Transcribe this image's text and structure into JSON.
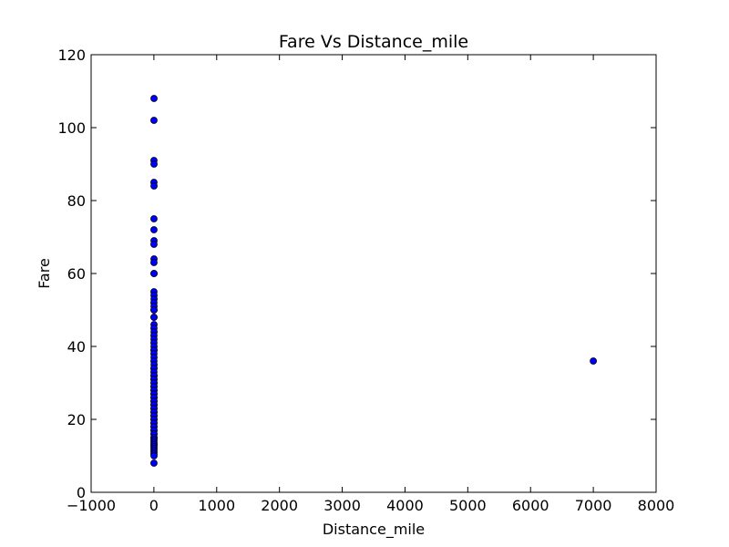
{
  "chart_data": {
    "type": "scatter",
    "title": "Fare Vs Distance_mile",
    "xlabel": "Distance_mile",
    "ylabel": "Fare",
    "xlim": [
      -1000,
      8000
    ],
    "ylim": [
      0,
      120
    ],
    "xticks": [
      -1000,
      0,
      1000,
      2000,
      3000,
      4000,
      5000,
      6000,
      7000,
      8000
    ],
    "yticks": [
      0,
      20,
      40,
      60,
      80,
      100,
      120
    ],
    "grid": false,
    "legend": "none",
    "colors": {
      "marker_fill": "#0000ff",
      "marker_edge": "#000000",
      "axes": "#000000"
    },
    "series": [
      {
        "points": [
          [
            2,
            108
          ],
          [
            1,
            102
          ],
          [
            1,
            91
          ],
          [
            2,
            90
          ],
          [
            1,
            85
          ],
          [
            2,
            84
          ],
          [
            1,
            75
          ],
          [
            1,
            72
          ],
          [
            2,
            69
          ],
          [
            1,
            68
          ],
          [
            2,
            64
          ],
          [
            1,
            63
          ],
          [
            1,
            60
          ],
          [
            3,
            60
          ],
          [
            1,
            55
          ],
          [
            2,
            54
          ],
          [
            3,
            53
          ],
          [
            1,
            52
          ],
          [
            2,
            51
          ],
          [
            1,
            50
          ],
          [
            3,
            50
          ],
          [
            1,
            48
          ],
          [
            2,
            48
          ],
          [
            2,
            46
          ],
          [
            1,
            45
          ],
          [
            3,
            44
          ],
          [
            1,
            43
          ],
          [
            2,
            42
          ],
          [
            1,
            41
          ],
          [
            2,
            40
          ],
          [
            1,
            39
          ],
          [
            3,
            39
          ],
          [
            1,
            38
          ],
          [
            2,
            37
          ],
          [
            1,
            36
          ],
          [
            3,
            35
          ],
          [
            1,
            34
          ],
          [
            2,
            34
          ],
          [
            1,
            33
          ],
          [
            1,
            32
          ],
          [
            3,
            32
          ],
          [
            2,
            31
          ],
          [
            1,
            31
          ],
          [
            3,
            30
          ],
          [
            2,
            30
          ],
          [
            1,
            29
          ],
          [
            2,
            29
          ],
          [
            1,
            28
          ],
          [
            3,
            28
          ],
          [
            1,
            27
          ],
          [
            2,
            27
          ],
          [
            1,
            26
          ],
          [
            3,
            26
          ],
          [
            2,
            25
          ],
          [
            1,
            25
          ],
          [
            1,
            24
          ],
          [
            3,
            24
          ],
          [
            2,
            23
          ],
          [
            1,
            23
          ],
          [
            1,
            22
          ],
          [
            3,
            22
          ],
          [
            2,
            21
          ],
          [
            1,
            21
          ],
          [
            1,
            20
          ],
          [
            3,
            20
          ],
          [
            2,
            19
          ],
          [
            1,
            19
          ],
          [
            1,
            18
          ],
          [
            2,
            18
          ],
          [
            1,
            17
          ],
          [
            3,
            17
          ],
          [
            2,
            16
          ],
          [
            1,
            16
          ],
          [
            1,
            15
          ],
          [
            3,
            15
          ],
          [
            2,
            14.5
          ],
          [
            1,
            14
          ],
          [
            2,
            13.5
          ],
          [
            1,
            13
          ],
          [
            3,
            13
          ],
          [
            1,
            12.5
          ],
          [
            2,
            12
          ],
          [
            1,
            11.5
          ],
          [
            2,
            11
          ],
          [
            1,
            10.5
          ],
          [
            2,
            10
          ],
          [
            1,
            8
          ],
          [
            7000,
            36
          ]
        ]
      }
    ]
  }
}
